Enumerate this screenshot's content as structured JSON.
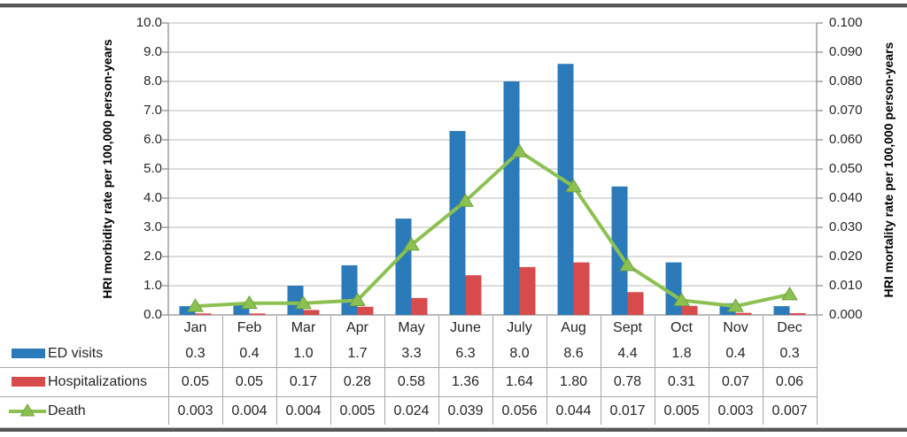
{
  "chart_data": {
    "type": "bar",
    "subtype": "combo-bar-line",
    "title": "",
    "categories": [
      "Jan",
      "Feb",
      "Mar",
      "Apr",
      "May",
      "June",
      "July",
      "Aug",
      "Sept",
      "Oct",
      "Nov",
      "Dec"
    ],
    "series": [
      {
        "name": "ED visits",
        "type": "bar",
        "axis": "left",
        "color": "#2b7bba",
        "values": [
          0.3,
          0.4,
          1.0,
          1.7,
          3.3,
          6.3,
          8.0,
          8.6,
          4.4,
          1.8,
          0.4,
          0.3
        ],
        "display": [
          "0.3",
          "0.4",
          "1.0",
          "1.7",
          "3.3",
          "6.3",
          "8.0",
          "8.6",
          "4.4",
          "1.8",
          "0.4",
          "0.3"
        ]
      },
      {
        "name": "Hospitalizations",
        "type": "bar",
        "axis": "left",
        "color": "#d84b4d",
        "values": [
          0.05,
          0.05,
          0.17,
          0.28,
          0.58,
          1.36,
          1.64,
          1.8,
          0.78,
          0.31,
          0.07,
          0.06
        ],
        "display": [
          "0.05",
          "0.05",
          "0.17",
          "0.28",
          "0.58",
          "1.36",
          "1.64",
          "1.80",
          "0.78",
          "0.31",
          "0.07",
          "0.06"
        ]
      },
      {
        "name": "Death",
        "type": "line",
        "axis": "right",
        "color": "#8cc152",
        "marker": "triangle",
        "marker_edge_color": "#6fa33c",
        "values": [
          0.003,
          0.004,
          0.004,
          0.005,
          0.024,
          0.039,
          0.056,
          0.044,
          0.017,
          0.005,
          0.003,
          0.007
        ],
        "display": [
          "0.003",
          "0.004",
          "0.004",
          "0.005",
          "0.024",
          "0.039",
          "0.056",
          "0.044",
          "0.017",
          "0.005",
          "0.003",
          "0.007"
        ]
      }
    ],
    "left_axis": {
      "title": "HRI morbidity rate per 100,000 person-years",
      "min": 0,
      "max": 10,
      "step": 1,
      "tick_labels": [
        "10.0",
        "9.0",
        "8.0",
        "7.0",
        "6.0",
        "5.0",
        "4.0",
        "3.0",
        "2.0",
        "1.0",
        "0.0"
      ]
    },
    "right_axis": {
      "title": "HRI mortality rate per 100,000 person-years",
      "min": 0,
      "max": 0.1,
      "step": 0.01,
      "tick_labels": [
        "0.100",
        "0.090",
        "0.080",
        "0.070",
        "0.060",
        "0.050",
        "0.040",
        "0.030",
        "0.020",
        "0.010",
        "0.000"
      ]
    },
    "grid": "horizontal",
    "legend_position": "table-left",
    "gridline_color": "#c8c8c8",
    "axis_line_color": "#909090",
    "table_border_color": "#a6a6a6",
    "frame_rule_color": "#565656"
  }
}
